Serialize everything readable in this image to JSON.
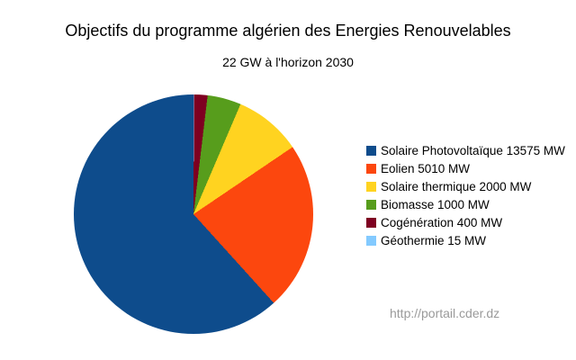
{
  "page": {
    "title": "Objectifs du programme algérien des Energies Renouvelables",
    "subtitle": "22 GW à l'horizon 2030",
    "watermark_url": "http://portail.cder.dz"
  },
  "colors": {
    "background": "#FFFFFF",
    "title_text": "#000000",
    "watermark_text": "#9A9A9A"
  },
  "chart_data": {
    "type": "pie",
    "title": "Objectifs du programme algérien des Energies Renouvelables",
    "subtitle": "22 GW à l'horizon 2030",
    "unit": "MW",
    "total_mw": 22000,
    "legend_position": "right",
    "start_angle_deg": 0,
    "direction": "counterclockwise-from-top",
    "series": [
      {
        "name": "Solaire Photovoltaïque",
        "value": 13575,
        "color": "#0E4C8C",
        "label": "Solaire Photovoltaïque 13575 MW"
      },
      {
        "name": "Eolien",
        "value": 5010,
        "color": "#FC470E",
        "label": "Eolien 5010 MW"
      },
      {
        "name": "Solaire thermique",
        "value": 2000,
        "color": "#FFD320",
        "label": "Solaire thermique 2000 MW"
      },
      {
        "name": "Biomasse",
        "value": 1000,
        "color": "#579D1C",
        "label": "Biomasse 1000 MW"
      },
      {
        "name": "Cogénération",
        "value": 400,
        "color": "#7E0021",
        "label": "Cogénération 400 MW"
      },
      {
        "name": "Géothermie",
        "value": 15,
        "color": "#83CAFF",
        "label": "Géothermie 15 MW"
      }
    ]
  }
}
